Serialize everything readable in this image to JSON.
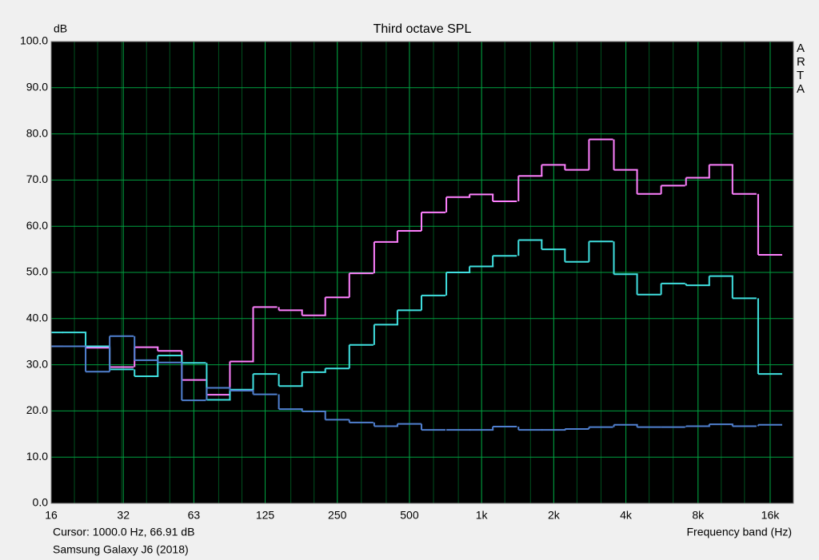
{
  "chart_data": {
    "type": "step",
    "title": "Third octave SPL",
    "y_label": "dB",
    "x_label": "Frequency band (Hz)",
    "brand": "ARTA",
    "cursor": "Cursor:  1000.0 Hz, 66.91 dB",
    "device": "Samsung Galaxy J6 (2018)",
    "x": [
      16,
      20,
      25,
      31.5,
      40,
      50,
      63,
      80,
      100,
      125,
      160,
      200,
      250,
      315,
      400,
      500,
      630,
      800,
      1000,
      1250,
      1600,
      2000,
      2500,
      3150,
      4000,
      5000,
      6300,
      8000,
      10000,
      12500,
      16000
    ],
    "series": [
      {
        "color": "#ff80ff",
        "values": [
          34,
          34,
          33.7,
          29.5,
          33.8,
          33,
          26.7,
          23.5,
          30.7,
          42.5,
          41.8,
          40.7,
          44.6,
          49.8,
          56.6,
          59,
          63,
          66.3,
          66.9,
          65.4,
          70.9,
          73.3,
          72.2,
          78.8,
          72.2,
          67,
          68.8,
          70.5,
          73.3,
          67,
          53.8
        ]
      },
      {
        "color": "#40e0e0",
        "values": [
          37,
          37,
          34,
          29,
          27.5,
          32,
          30.4,
          22.4,
          24.6,
          28,
          25.4,
          28.4,
          29.2,
          34.3,
          38.7,
          41.8,
          45,
          50,
          51.3,
          53.6,
          57,
          55,
          52.3,
          56.7,
          49.6,
          45.2,
          47.6,
          47.2,
          49.2,
          44.4,
          28
        ]
      },
      {
        "color": "#5080d0",
        "values": [
          34,
          34,
          28.5,
          36.2,
          31,
          30.5,
          22.3,
          25,
          24.4,
          23.6,
          20.4,
          19.9,
          18.1,
          17.5,
          16.7,
          17.2,
          15.9,
          15.9,
          15.9,
          16.6,
          15.9,
          15.9,
          16.1,
          16.5,
          17,
          16.5,
          16.5,
          16.7,
          17.1,
          16.7,
          17
        ]
      }
    ],
    "xlim": [
      16,
      20000
    ],
    "log_x": true,
    "xticks": [
      16,
      32,
      63,
      125,
      250,
      500,
      {
        "value": 1000,
        "label": "1k"
      },
      {
        "value": 2000,
        "label": "2k"
      },
      {
        "value": 4000,
        "label": "4k"
      },
      {
        "value": 8000,
        "label": "8k"
      },
      {
        "value": 16000,
        "label": "16k"
      }
    ],
    "ylim": [
      0,
      100
    ],
    "yticks": [
      {
        "value": 0,
        "label": "0.0"
      },
      {
        "value": 10,
        "label": "10.0"
      },
      {
        "value": 20,
        "label": "20.0"
      },
      {
        "value": 30,
        "label": "30.0"
      },
      {
        "value": 40,
        "label": "40.0"
      },
      {
        "value": 50,
        "label": "50.0"
      },
      {
        "value": 60,
        "label": "60.0"
      },
      {
        "value": 70,
        "label": "70.0"
      },
      {
        "value": 80,
        "label": "80.0"
      },
      {
        "value": 90,
        "label": "90.0"
      },
      {
        "value": 100,
        "label": "100.0"
      }
    ],
    "grid": true
  }
}
